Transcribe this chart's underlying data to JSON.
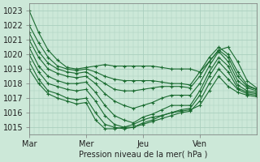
{
  "xlabel": "Pression niveau de la mer( hPa )",
  "xlim": [
    0,
    96
  ],
  "ylim": [
    1014.5,
    1023.5
  ],
  "yticks": [
    1015,
    1016,
    1017,
    1018,
    1019,
    1020,
    1021,
    1022,
    1023
  ],
  "xtick_labels": [
    "Mar",
    "Mer",
    "Jeu",
    "Ven"
  ],
  "xtick_positions": [
    0,
    24,
    48,
    72
  ],
  "bg_color": "#cce8d8",
  "grid_color": "#aacfbe",
  "line_color": "#1a6b30",
  "series": [
    {
      "x": [
        0,
        4,
        8,
        12,
        16,
        20,
        24,
        28,
        32,
        36,
        40,
        44,
        48,
        52,
        56,
        60,
        64,
        68,
        72,
        76,
        80,
        84,
        88,
        92,
        96
      ],
      "y": [
        1023.0,
        1021.5,
        1020.3,
        1019.6,
        1019.1,
        1019.0,
        1019.1,
        1019.2,
        1019.3,
        1019.2,
        1019.2,
        1019.2,
        1019.2,
        1019.2,
        1019.1,
        1019.0,
        1019.0,
        1019.0,
        1018.8,
        1019.5,
        1020.3,
        1020.5,
        1019.5,
        1018.2,
        1017.7
      ]
    },
    {
      "x": [
        0,
        4,
        8,
        12,
        16,
        20,
        24,
        28,
        32,
        36,
        40,
        44,
        48,
        52,
        56,
        60,
        64,
        68,
        72,
        76,
        80,
        84,
        88,
        92,
        96
      ],
      "y": [
        1022.0,
        1020.8,
        1019.8,
        1019.2,
        1019.0,
        1018.9,
        1019.0,
        1018.8,
        1018.5,
        1018.3,
        1018.2,
        1018.2,
        1018.2,
        1018.2,
        1018.1,
        1018.0,
        1018.0,
        1017.9,
        1018.8,
        1019.8,
        1020.5,
        1020.0,
        1018.8,
        1017.9,
        1017.6
      ]
    },
    {
      "x": [
        0,
        4,
        8,
        12,
        16,
        20,
        24,
        28,
        32,
        36,
        40,
        44,
        48,
        52,
        56,
        60,
        64,
        68,
        72,
        76,
        80,
        84,
        88,
        92,
        96
      ],
      "y": [
        1021.5,
        1020.2,
        1019.4,
        1019.0,
        1018.8,
        1018.7,
        1018.8,
        1018.4,
        1018.0,
        1017.6,
        1017.5,
        1017.5,
        1017.6,
        1017.7,
        1017.8,
        1017.8,
        1017.8,
        1017.7,
        1018.5,
        1019.5,
        1020.3,
        1019.8,
        1018.5,
        1017.8,
        1017.6
      ]
    },
    {
      "x": [
        0,
        4,
        8,
        12,
        16,
        20,
        24,
        28,
        32,
        36,
        40,
        44,
        48,
        52,
        56,
        60,
        64,
        68,
        72,
        76,
        80,
        84,
        88,
        92,
        96
      ],
      "y": [
        1021.0,
        1019.8,
        1019.0,
        1018.7,
        1018.5,
        1018.4,
        1018.5,
        1018.0,
        1017.3,
        1016.8,
        1016.5,
        1016.3,
        1016.5,
        1016.7,
        1017.0,
        1017.2,
        1017.2,
        1017.2,
        1018.0,
        1019.2,
        1020.2,
        1019.5,
        1018.2,
        1017.7,
        1017.5
      ]
    },
    {
      "x": [
        0,
        4,
        8,
        12,
        16,
        20,
        24,
        28,
        32,
        36,
        40,
        44,
        48,
        52,
        56,
        60,
        64,
        68,
        72,
        76,
        80,
        84,
        88,
        92,
        96
      ],
      "y": [
        1020.5,
        1019.2,
        1018.5,
        1018.2,
        1018.0,
        1018.0,
        1018.1,
        1017.4,
        1016.5,
        1015.8,
        1015.5,
        1015.3,
        1015.7,
        1015.9,
        1016.2,
        1016.5,
        1016.5,
        1016.5,
        1017.5,
        1018.8,
        1019.8,
        1019.2,
        1017.9,
        1017.5,
        1017.4
      ]
    },
    {
      "x": [
        0,
        4,
        8,
        12,
        16,
        20,
        24,
        28,
        32,
        36,
        40,
        44,
        48,
        52,
        56,
        60,
        64,
        68,
        72,
        76,
        80,
        84,
        88,
        92,
        96
      ],
      "y": [
        1020.0,
        1018.8,
        1018.0,
        1017.8,
        1017.6,
        1017.5,
        1017.6,
        1016.8,
        1015.8,
        1015.2,
        1015.0,
        1015.0,
        1015.3,
        1015.5,
        1015.8,
        1016.0,
        1016.2,
        1016.3,
        1017.2,
        1018.5,
        1019.5,
        1018.8,
        1017.7,
        1017.4,
        1017.3
      ]
    },
    {
      "x": [
        0,
        4,
        8,
        12,
        16,
        20,
        24,
        28,
        32,
        36,
        40,
        44,
        48,
        52,
        56,
        60,
        64,
        68,
        72,
        76,
        80,
        84,
        88,
        92,
        96
      ],
      "y": [
        1019.5,
        1018.3,
        1017.5,
        1017.3,
        1017.0,
        1016.9,
        1017.0,
        1016.0,
        1015.2,
        1015.0,
        1014.9,
        1015.0,
        1015.2,
        1015.4,
        1015.6,
        1015.8,
        1016.0,
        1016.1,
        1016.8,
        1018.0,
        1019.0,
        1018.3,
        1017.6,
        1017.3,
        1017.2
      ]
    },
    {
      "x": [
        0,
        4,
        8,
        12,
        16,
        20,
        24,
        28,
        32,
        36,
        40,
        44,
        48,
        52,
        56,
        60,
        64,
        68,
        72,
        76,
        80,
        84,
        88,
        92,
        96
      ],
      "y": [
        1019.0,
        1018.0,
        1017.3,
        1017.0,
        1016.8,
        1016.6,
        1016.7,
        1015.5,
        1014.9,
        1014.9,
        1015.0,
        1015.2,
        1015.5,
        1015.7,
        1015.8,
        1016.0,
        1016.1,
        1016.2,
        1016.5,
        1017.5,
        1018.5,
        1017.8,
        1017.4,
        1017.2,
        1017.1
      ]
    }
  ]
}
